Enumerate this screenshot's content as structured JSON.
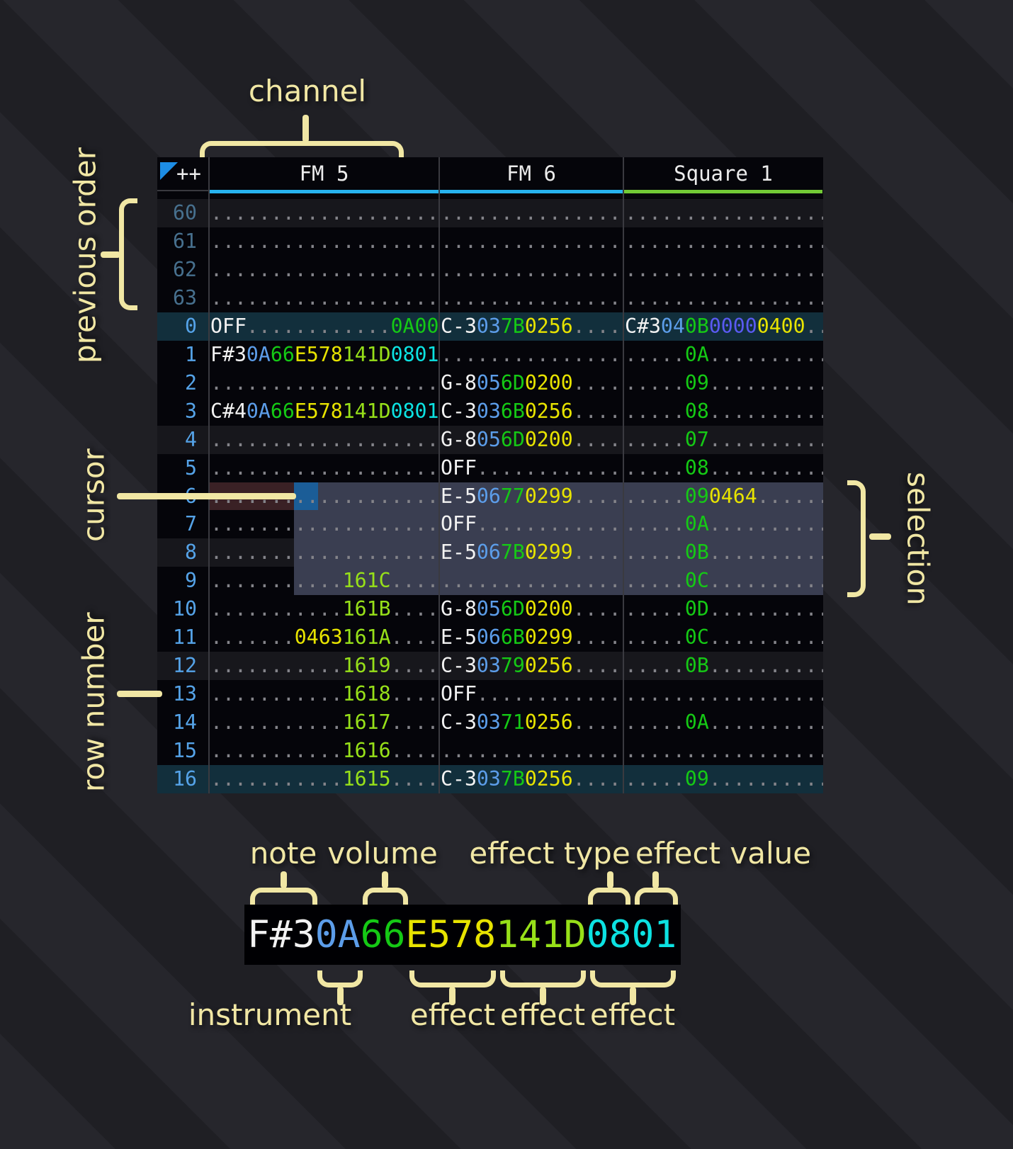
{
  "annotations": {
    "channel": "channel",
    "previous_order": "previous order",
    "cursor": "cursor",
    "row_number": "row number",
    "selection": "selection",
    "note": "note",
    "volume": "volume",
    "effect_type": "effect type",
    "effect_value": "effect value",
    "instrument": "instrument",
    "effect1": "effect",
    "effect2": "effect",
    "effect3": "effect"
  },
  "tracker": {
    "corner_label": "++",
    "corner_triangle_color": "#1d8de5",
    "channels": [
      {
        "name": "FM 5",
        "underline_color": "#27b3ef"
      },
      {
        "name": "FM 6",
        "underline_color": "#27b3ef"
      },
      {
        "name": "Square 1",
        "underline_color": "#72c936"
      }
    ],
    "colors": {
      "note": "#f2f2f2",
      "ins": "#5c9de9",
      "vol": "#15c915",
      "fxY": "#e7e300",
      "fxL": "#97e019",
      "fxC": "#0ce2e2",
      "fxV": "#5a5af2",
      "fxG": "#15c915",
      "dot": "#84848a"
    },
    "row_number_colors": {
      "normal": "#55a3e8",
      "previous_order": "#47708e"
    },
    "highlight_colors": {
      "h1": "#17171c",
      "h2": "#122f3c"
    },
    "selection_color": "#3a3e51",
    "cursor_color": "#1b5d97",
    "cursor_row_tint": "#3a2125",
    "cursor": {
      "row": "6",
      "char_start": 7,
      "char_width": 2
    },
    "selection": {
      "row_start": "6",
      "row_end": "9",
      "char_start": 7
    },
    "rows": [
      {
        "num": "60",
        "dim": true,
        "hl": "h1",
        "fm5": [
          [
            "...................",
            "dot"
          ]
        ],
        "fm6": [
          [
            "...............",
            "dot"
          ]
        ],
        "sq1": [
          [
            ".................",
            "dot"
          ]
        ]
      },
      {
        "num": "61",
        "dim": true,
        "hl": "",
        "fm5": [
          [
            "...................",
            "dot"
          ]
        ],
        "fm6": [
          [
            "...............",
            "dot"
          ]
        ],
        "sq1": [
          [
            ".................",
            "dot"
          ]
        ]
      },
      {
        "num": "62",
        "dim": true,
        "hl": "",
        "fm5": [
          [
            "...................",
            "dot"
          ]
        ],
        "fm6": [
          [
            "...............",
            "dot"
          ]
        ],
        "sq1": [
          [
            ".................",
            "dot"
          ]
        ]
      },
      {
        "num": "63",
        "dim": true,
        "hl": "",
        "fm5": [
          [
            "...................",
            "dot"
          ]
        ],
        "fm6": [
          [
            "...............",
            "dot"
          ]
        ],
        "sq1": [
          [
            ".................",
            "dot"
          ]
        ]
      },
      {
        "num": "0",
        "dim": false,
        "hl": "h2",
        "fm5": [
          [
            "OFF",
            "note"
          ],
          [
            "............",
            "dot"
          ],
          [
            "0A00",
            "fxG"
          ]
        ],
        "fm6": [
          [
            "C-3",
            "note"
          ],
          [
            "03",
            "ins"
          ],
          [
            "7B",
            "vol"
          ],
          [
            "0256",
            "fxY"
          ],
          [
            "....",
            "dot"
          ]
        ],
        "sq1": [
          [
            "C#3",
            "note"
          ],
          [
            "04",
            "ins"
          ],
          [
            "0B",
            "vol"
          ],
          [
            "0000",
            "fxV"
          ],
          [
            "0400",
            "fxY"
          ],
          [
            "..",
            "dot"
          ]
        ]
      },
      {
        "num": "1",
        "dim": false,
        "hl": "",
        "fm5": [
          [
            "F#3",
            "note"
          ],
          [
            "0A",
            "ins"
          ],
          [
            "66",
            "vol"
          ],
          [
            "E578",
            "fxY"
          ],
          [
            "141D",
            "fxL"
          ],
          [
            "0801",
            "fxC"
          ]
        ],
        "fm6": [
          [
            "...............",
            "dot"
          ]
        ],
        "sq1": [
          [
            ".....",
            "dot"
          ],
          [
            "0A",
            "vol"
          ],
          [
            "..........",
            "dot"
          ]
        ]
      },
      {
        "num": "2",
        "dim": false,
        "hl": "",
        "fm5": [
          [
            "...................",
            "dot"
          ]
        ],
        "fm6": [
          [
            "G-8",
            "note"
          ],
          [
            "05",
            "ins"
          ],
          [
            "6D",
            "vol"
          ],
          [
            "0200",
            "fxY"
          ],
          [
            "....",
            "dot"
          ]
        ],
        "sq1": [
          [
            ".....",
            "dot"
          ],
          [
            "09",
            "vol"
          ],
          [
            "..........",
            "dot"
          ]
        ]
      },
      {
        "num": "3",
        "dim": false,
        "hl": "",
        "fm5": [
          [
            "C#4",
            "note"
          ],
          [
            "0A",
            "ins"
          ],
          [
            "66",
            "vol"
          ],
          [
            "E578",
            "fxY"
          ],
          [
            "141D",
            "fxL"
          ],
          [
            "0801",
            "fxC"
          ]
        ],
        "fm6": [
          [
            "C-3",
            "note"
          ],
          [
            "03",
            "ins"
          ],
          [
            "6B",
            "vol"
          ],
          [
            "0256",
            "fxY"
          ],
          [
            "....",
            "dot"
          ]
        ],
        "sq1": [
          [
            ".....",
            "dot"
          ],
          [
            "08",
            "vol"
          ],
          [
            "..........",
            "dot"
          ]
        ]
      },
      {
        "num": "4",
        "dim": false,
        "hl": "h1",
        "fm5": [
          [
            "...................",
            "dot"
          ]
        ],
        "fm6": [
          [
            "G-8",
            "note"
          ],
          [
            "05",
            "ins"
          ],
          [
            "6D",
            "vol"
          ],
          [
            "0200",
            "fxY"
          ],
          [
            "....",
            "dot"
          ]
        ],
        "sq1": [
          [
            ".....",
            "dot"
          ],
          [
            "07",
            "vol"
          ],
          [
            "..........",
            "dot"
          ]
        ]
      },
      {
        "num": "5",
        "dim": false,
        "hl": "",
        "fm5": [
          [
            "...................",
            "dot"
          ]
        ],
        "fm6": [
          [
            "OFF",
            "note"
          ],
          [
            "............",
            "dot"
          ]
        ],
        "sq1": [
          [
            ".....",
            "dot"
          ],
          [
            "08",
            "vol"
          ],
          [
            "..........",
            "dot"
          ]
        ]
      },
      {
        "num": "6",
        "dim": false,
        "hl": "",
        "fm5": [
          [
            "...................",
            "dot"
          ]
        ],
        "fm6": [
          [
            "E-5",
            "note"
          ],
          [
            "06",
            "ins"
          ],
          [
            "77",
            "vol"
          ],
          [
            "0299",
            "fxY"
          ],
          [
            "....",
            "dot"
          ]
        ],
        "sq1": [
          [
            ".....",
            "dot"
          ],
          [
            "09",
            "vol"
          ],
          [
            "0464",
            "fxY"
          ],
          [
            "......",
            "dot"
          ]
        ]
      },
      {
        "num": "7",
        "dim": false,
        "hl": "",
        "fm5": [
          [
            "...................",
            "dot"
          ]
        ],
        "fm6": [
          [
            "OFF",
            "note"
          ],
          [
            "............",
            "dot"
          ]
        ],
        "sq1": [
          [
            ".....",
            "dot"
          ],
          [
            "0A",
            "vol"
          ],
          [
            "..........",
            "dot"
          ]
        ]
      },
      {
        "num": "8",
        "dim": false,
        "hl": "h1",
        "fm5": [
          [
            "...................",
            "dot"
          ]
        ],
        "fm6": [
          [
            "E-5",
            "note"
          ],
          [
            "06",
            "ins"
          ],
          [
            "7B",
            "vol"
          ],
          [
            "0299",
            "fxY"
          ],
          [
            "....",
            "dot"
          ]
        ],
        "sq1": [
          [
            ".....",
            "dot"
          ],
          [
            "0B",
            "vol"
          ],
          [
            "..........",
            "dot"
          ]
        ]
      },
      {
        "num": "9",
        "dim": false,
        "hl": "",
        "fm5": [
          [
            "...........",
            "dot"
          ],
          [
            "161C",
            "fxL"
          ],
          [
            "....",
            "dot"
          ]
        ],
        "fm6": [
          [
            "...............",
            "dot"
          ]
        ],
        "sq1": [
          [
            ".....",
            "dot"
          ],
          [
            "0C",
            "vol"
          ],
          [
            "..........",
            "dot"
          ]
        ]
      },
      {
        "num": "10",
        "dim": false,
        "hl": "",
        "fm5": [
          [
            "...........",
            "dot"
          ],
          [
            "161B",
            "fxL"
          ],
          [
            "....",
            "dot"
          ]
        ],
        "fm6": [
          [
            "G-8",
            "note"
          ],
          [
            "05",
            "ins"
          ],
          [
            "6D",
            "vol"
          ],
          [
            "0200",
            "fxY"
          ],
          [
            "....",
            "dot"
          ]
        ],
        "sq1": [
          [
            ".....",
            "dot"
          ],
          [
            "0D",
            "vol"
          ],
          [
            "..........",
            "dot"
          ]
        ]
      },
      {
        "num": "11",
        "dim": false,
        "hl": "",
        "fm5": [
          [
            ".......",
            "dot"
          ],
          [
            "0463",
            "fxY"
          ],
          [
            "161A",
            "fxL"
          ],
          [
            "....",
            "dot"
          ]
        ],
        "fm6": [
          [
            "E-5",
            "note"
          ],
          [
            "06",
            "ins"
          ],
          [
            "6B",
            "vol"
          ],
          [
            "0299",
            "fxY"
          ],
          [
            "....",
            "dot"
          ]
        ],
        "sq1": [
          [
            ".....",
            "dot"
          ],
          [
            "0C",
            "vol"
          ],
          [
            "..........",
            "dot"
          ]
        ]
      },
      {
        "num": "12",
        "dim": false,
        "hl": "h1",
        "fm5": [
          [
            "...........",
            "dot"
          ],
          [
            "1619",
            "fxL"
          ],
          [
            "....",
            "dot"
          ]
        ],
        "fm6": [
          [
            "C-3",
            "note"
          ],
          [
            "03",
            "ins"
          ],
          [
            "79",
            "vol"
          ],
          [
            "0256",
            "fxY"
          ],
          [
            "....",
            "dot"
          ]
        ],
        "sq1": [
          [
            ".....",
            "dot"
          ],
          [
            "0B",
            "vol"
          ],
          [
            "..........",
            "dot"
          ]
        ]
      },
      {
        "num": "13",
        "dim": false,
        "hl": "",
        "fm5": [
          [
            "...........",
            "dot"
          ],
          [
            "1618",
            "fxL"
          ],
          [
            "....",
            "dot"
          ]
        ],
        "fm6": [
          [
            "OFF",
            "note"
          ],
          [
            "............",
            "dot"
          ]
        ],
        "sq1": [
          [
            ".................",
            "dot"
          ]
        ]
      },
      {
        "num": "14",
        "dim": false,
        "hl": "",
        "fm5": [
          [
            "...........",
            "dot"
          ],
          [
            "1617",
            "fxL"
          ],
          [
            "....",
            "dot"
          ]
        ],
        "fm6": [
          [
            "C-3",
            "note"
          ],
          [
            "03",
            "ins"
          ],
          [
            "71",
            "vol"
          ],
          [
            "0256",
            "fxY"
          ],
          [
            "....",
            "dot"
          ]
        ],
        "sq1": [
          [
            ".....",
            "dot"
          ],
          [
            "0A",
            "vol"
          ],
          [
            "..........",
            "dot"
          ]
        ]
      },
      {
        "num": "15",
        "dim": false,
        "hl": "",
        "fm5": [
          [
            "...........",
            "dot"
          ],
          [
            "1616",
            "fxL"
          ],
          [
            "....",
            "dot"
          ]
        ],
        "fm6": [
          [
            "...............",
            "dot"
          ]
        ],
        "sq1": [
          [
            ".................",
            "dot"
          ]
        ]
      },
      {
        "num": "16",
        "dim": false,
        "hl": "h2",
        "fm5": [
          [
            "...........",
            "dot"
          ],
          [
            "1615",
            "fxL"
          ],
          [
            "....",
            "dot"
          ]
        ],
        "fm6": [
          [
            "C-3",
            "note"
          ],
          [
            "03",
            "ins"
          ],
          [
            "7B",
            "vol"
          ],
          [
            "0256",
            "fxY"
          ],
          [
            "....",
            "dot"
          ]
        ],
        "sq1": [
          [
            ".....",
            "dot"
          ],
          [
            "09",
            "vol"
          ],
          [
            "..........",
            "dot"
          ]
        ]
      }
    ]
  },
  "legend": {
    "segments": [
      [
        "F#3",
        "note"
      ],
      [
        "0A",
        "ins"
      ],
      [
        "66",
        "vol"
      ],
      [
        "E578",
        "fxY"
      ],
      [
        "141D",
        "fxL"
      ],
      [
        "0801",
        "fxC"
      ]
    ]
  }
}
